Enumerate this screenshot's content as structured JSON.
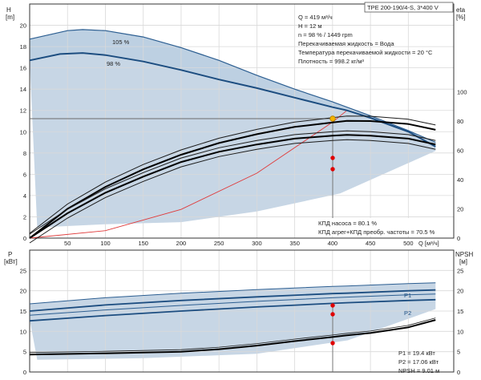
{
  "chart_data": [
    {
      "type": "line",
      "title": "TPE 200-190/4-S, 3*400 V",
      "xlabel": "Q [м³/ч]",
      "ylabel_left": "H",
      "ylabel_left_unit": "[m]",
      "ylabel_right": "eta",
      "ylabel_right_unit": "[%]",
      "xlim": [
        0,
        560
      ],
      "ylim_left": [
        0,
        22
      ],
      "ylim_right": [
        0,
        160
      ],
      "x_ticks": [
        50,
        100,
        150,
        200,
        250,
        300,
        350,
        400,
        450,
        500
      ],
      "y_ticks_left": [
        0,
        2,
        4,
        6,
        8,
        10,
        12,
        14,
        16,
        18,
        20
      ],
      "y_ticks_right": [
        0,
        20,
        40,
        60,
        80,
        100
      ],
      "series": [
        {
          "name": "105 %",
          "x": [
            0,
            50,
            70,
            100,
            150,
            200,
            250,
            300,
            350,
            400,
            450,
            500,
            536
          ],
          "y": [
            18.7,
            19.5,
            19.6,
            19.5,
            18.9,
            17.9,
            16.7,
            15.3,
            14.0,
            12.8,
            11.5,
            10.1,
            9.0
          ]
        },
        {
          "name": "98 %",
          "x": [
            0,
            40,
            70,
            100,
            150,
            200,
            250,
            300,
            350,
            400,
            419,
            450,
            500,
            536
          ],
          "y": [
            16.7,
            17.3,
            17.4,
            17.2,
            16.6,
            15.8,
            14.9,
            14.1,
            13.2,
            12.3,
            12.0,
            11.3,
            10.0,
            8.6
          ]
        },
        {
          "name": "eta pump",
          "axis": "right",
          "x": [
            0,
            50,
            100,
            150,
            200,
            250,
            300,
            350,
            400,
            419,
            450,
            500,
            536
          ],
          "y": [
            0,
            20,
            35,
            47,
            57,
            65,
            71,
            76,
            79,
            80.1,
            80,
            78,
            74
          ]
        },
        {
          "name": "eta total",
          "axis": "right",
          "x": [
            0,
            50,
            100,
            150,
            200,
            250,
            300,
            350,
            400,
            419,
            450,
            500,
            536
          ],
          "y": [
            0,
            17,
            31,
            42,
            52,
            59,
            64,
            68,
            70,
            70.5,
            70,
            68,
            64
          ]
        },
        {
          "name": "system curve",
          "x": [
            0,
            100,
            200,
            300,
            400,
            419
          ],
          "y": [
            0,
            0.7,
            2.7,
            6.1,
            10.9,
            12.0
          ]
        }
      ],
      "operating_point": {
        "x": 419,
        "y": 12
      },
      "annotations": {
        "q": "Q = 419 м³/ч",
        "h": "H = 12 м",
        "n": "n = 98 % / 1449 rpm",
        "liquid": "Перекачиваемая жидкость = Вода",
        "temp": "Температура перекачиваемой жидкости = 20 °C",
        "density": "Плотность = 998.2 кг/м³",
        "eta_pump": "КПД насоса = 80.1 %",
        "eta_total": "КПД агрег+КПД преобр. частоты = 70.5 %",
        "speed_105": "105 %",
        "speed_98": "98 %"
      }
    },
    {
      "type": "line",
      "xlabel": "",
      "ylabel_left": "P",
      "ylabel_left_unit": "[кВт]",
      "ylabel_right": "NPSH",
      "ylabel_right_unit": "[м]",
      "xlim": [
        0,
        560
      ],
      "ylim_left": [
        0,
        30
      ],
      "ylim_right": [
        0,
        30
      ],
      "y_ticks_left": [
        0,
        5,
        10,
        15,
        20,
        25
      ],
      "y_ticks_right": [
        0,
        5,
        10,
        15,
        20,
        25
      ],
      "series": [
        {
          "name": "P1",
          "x": [
            0,
            100,
            200,
            300,
            400,
            419,
            500,
            536
          ],
          "y": [
            15.0,
            16.5,
            17.6,
            18.5,
            19.3,
            19.4,
            20.0,
            20.2
          ]
        },
        {
          "name": "P2",
          "x": [
            0,
            100,
            200,
            300,
            400,
            419,
            500,
            536
          ],
          "y": [
            12.6,
            13.9,
            15.0,
            16.0,
            16.9,
            17.06,
            17.6,
            17.8
          ]
        },
        {
          "name": "NPSH",
          "axis": "right",
          "x": [
            0,
            100,
            200,
            250,
            300,
            350,
            400,
            419,
            450,
            500,
            536
          ],
          "y": [
            4.3,
            4.6,
            5.0,
            5.6,
            6.5,
            7.6,
            8.6,
            9.01,
            9.6,
            11.0,
            12.8
          ]
        }
      ],
      "annotations": {
        "p1": "P1 = 19.4 кВт",
        "p2": "P2 = 17.06 кВт",
        "npsh": "NPSH = 9.01 м",
        "label_p1": "P1",
        "label_p2": "P2"
      }
    }
  ]
}
